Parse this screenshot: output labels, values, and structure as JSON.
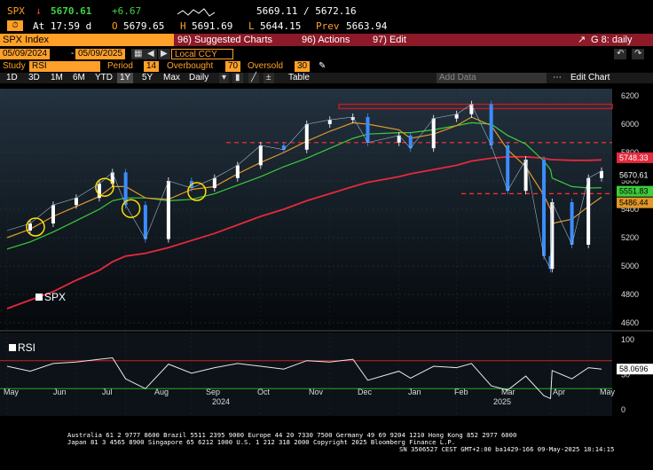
{
  "ticker": {
    "symbol": "SPX",
    "last": "5670.61",
    "change": "+6.67",
    "time": "At 17:59 d",
    "open_label": "O",
    "open": "5679.65",
    "high_label": "H",
    "high": "5691.69",
    "low_label": "L",
    "low": "5644.15",
    "prev_label": "Prev",
    "prev": "5663.94",
    "bidask": "5669.11 / 5672.16"
  },
  "menubar": {
    "security": "SPX Index",
    "suggested": "96) Suggested Charts",
    "actions": "96) Actions",
    "edit": "97) Edit",
    "window": "G 8: daily"
  },
  "controls": {
    "date_from": "05/09/2024",
    "date_to": "05/09/2025",
    "currency": "Local CCY",
    "study_label": "Study",
    "study": "RSI",
    "period_label": "Period",
    "period": "14",
    "overbought_label": "Overbought",
    "overbought": "70",
    "oversold_label": "Oversold",
    "oversold": "30",
    "ranges": [
      "1D",
      "3D",
      "1M",
      "6M",
      "YTD",
      "1Y",
      "5Y",
      "Max"
    ],
    "selected_range": "1Y",
    "frequency": "Daily",
    "table": "Table",
    "add_data": "Add Data",
    "edit_chart": "Edit Chart"
  },
  "price_axis": [
    "6200",
    "6000",
    "5800",
    "5600",
    "5400",
    "5200",
    "5000",
    "4800",
    "4600"
  ],
  "price_labels": {
    "last": "5670.61",
    "ma200": "5748.33",
    "ma50": "5551.83",
    "ma20": "5486.44"
  },
  "rsi_axis": [
    "100",
    "50",
    "0"
  ],
  "rsi_value": "58.0696",
  "legend": {
    "main": "SPX",
    "rsi": "RSI"
  },
  "months": [
    "May",
    "Jun",
    "Jul",
    "Aug",
    "Sep",
    "Oct",
    "Nov",
    "Dec",
    "Jan",
    "Feb",
    "Mar",
    "Apr",
    "May"
  ],
  "years": [
    "2024",
    "2025"
  ],
  "footer": {
    "line1": "Australia 61 2 9777 8600 Brazil 5511 2395 9000 Europe 44 20 7330 7500 Germany 49 69 9204 1210 Hong Kong 852 2977 6000",
    "line2": "Japan 81 3 4565 8900       Singapore 65 6212 1000       U.S. 1 212 318 2000             Copyright 2025 Bloomberg Finance L.P.",
    "line3": "SN 3506527 CEST GMT+2:00 ba1429-166 09-May-2025 18:14:15"
  },
  "colors": {
    "amber": "#ffa028",
    "ma200": "#e6283c",
    "ma50": "#3ccc3c",
    "ma20": "#e0982a",
    "up": "#ffffff",
    "down": "#3c8cff"
  },
  "chart_data": {
    "type": "line",
    "title": "SPX Index",
    "x": [
      "2024-05-13",
      "2024-05-27",
      "2024-06-10",
      "2024-06-24",
      "2024-07-08",
      "2024-07-16",
      "2024-07-24",
      "2024-08-05",
      "2024-08-19",
      "2024-09-02",
      "2024-09-16",
      "2024-09-30",
      "2024-10-14",
      "2024-10-28",
      "2024-11-11",
      "2024-11-25",
      "2024-12-09",
      "2024-12-18",
      "2025-01-06",
      "2025-01-13",
      "2025-01-27",
      "2025-02-10",
      "2025-02-19",
      "2025-03-03",
      "2025-03-13",
      "2025-03-24",
      "2025-04-04",
      "2025-04-08",
      "2025-04-09",
      "2025-04-21",
      "2025-05-01",
      "2025-05-09"
    ],
    "series": [
      {
        "name": "SPX",
        "values": [
          5250,
          5300,
          5430,
          5480,
          5580,
          5660,
          5430,
          5190,
          5600,
          5550,
          5620,
          5710,
          5850,
          5820,
          6000,
          6030,
          6050,
          5870,
          5920,
          5830,
          6040,
          6070,
          6140,
          5850,
          5530,
          5750,
          5070,
          4980,
          5450,
          5150,
          5620,
          5670
        ]
      },
      {
        "name": "MA20",
        "values": [
          5200,
          5260,
          5350,
          5420,
          5490,
          5560,
          5560,
          5480,
          5470,
          5540,
          5560,
          5650,
          5730,
          5800,
          5880,
          5950,
          6010,
          6000,
          5960,
          5900,
          5930,
          5990,
          6050,
          5990,
          5820,
          5700,
          5500,
          5400,
          5300,
          5330,
          5420,
          5486
        ]
      },
      {
        "name": "MA50",
        "values": [
          5120,
          5170,
          5240,
          5320,
          5400,
          5460,
          5480,
          5480,
          5460,
          5470,
          5510,
          5570,
          5630,
          5700,
          5760,
          5830,
          5900,
          5930,
          5940,
          5940,
          5960,
          5990,
          6010,
          6000,
          5920,
          5860,
          5740,
          5680,
          5620,
          5560,
          5550,
          5552
        ]
      },
      {
        "name": "MA200",
        "values": [
          4700,
          4760,
          4820,
          4900,
          4970,
          5030,
          5070,
          5090,
          5130,
          5180,
          5230,
          5290,
          5350,
          5400,
          5460,
          5510,
          5560,
          5590,
          5630,
          5650,
          5680,
          5710,
          5740,
          5760,
          5770,
          5770,
          5760,
          5750,
          5750,
          5745,
          5745,
          5748
        ]
      }
    ],
    "rsi": [
      62,
      55,
      66,
      68,
      72,
      74,
      44,
      30,
      65,
      52,
      60,
      66,
      62,
      58,
      70,
      68,
      72,
      42,
      55,
      45,
      62,
      60,
      66,
      34,
      28,
      48,
      20,
      16,
      56,
      44,
      60,
      58
    ],
    "ylim": [
      4550,
      6250
    ],
    "rsi_ylim": [
      0,
      100
    ],
    "overbought": 70,
    "oversold": 30,
    "resistance": [
      6140,
      6110
    ],
    "hlines": [
      5870,
      5510
    ]
  }
}
